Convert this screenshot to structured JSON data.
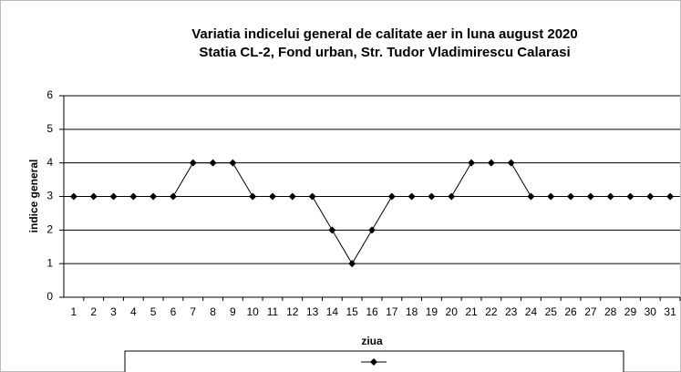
{
  "chart_data": {
    "type": "line",
    "title": "Variatia indicelui general de calitate aer in luna  august 2020",
    "subtitle": "Statia CL-2, Fond urban,  Str. Tudor Vladimirescu Calarasi",
    "x_label": "ziua",
    "y_label": "indice general",
    "categories": [
      "1",
      "2",
      "3",
      "4",
      "5",
      "6",
      "7",
      "8",
      "9",
      "10",
      "11",
      "12",
      "13",
      "14",
      "15",
      "16",
      "17",
      "18",
      "19",
      "20",
      "21",
      "22",
      "23",
      "24",
      "25",
      "26",
      "27",
      "28",
      "29",
      "30",
      "31"
    ],
    "series": [
      {
        "color": "#000000",
        "values": [
          3,
          3,
          3,
          3,
          3,
          3,
          4,
          4,
          4,
          3,
          3,
          3,
          3,
          2,
          1,
          2,
          3,
          3,
          3,
          3,
          4,
          4,
          4,
          3,
          3,
          3,
          3,
          3,
          3,
          3,
          3
        ]
      }
    ],
    "ylim": [
      0,
      6
    ],
    "yticks": [
      0,
      1,
      2,
      3,
      4,
      5,
      6
    ],
    "grid": true,
    "legend": "bottom"
  }
}
